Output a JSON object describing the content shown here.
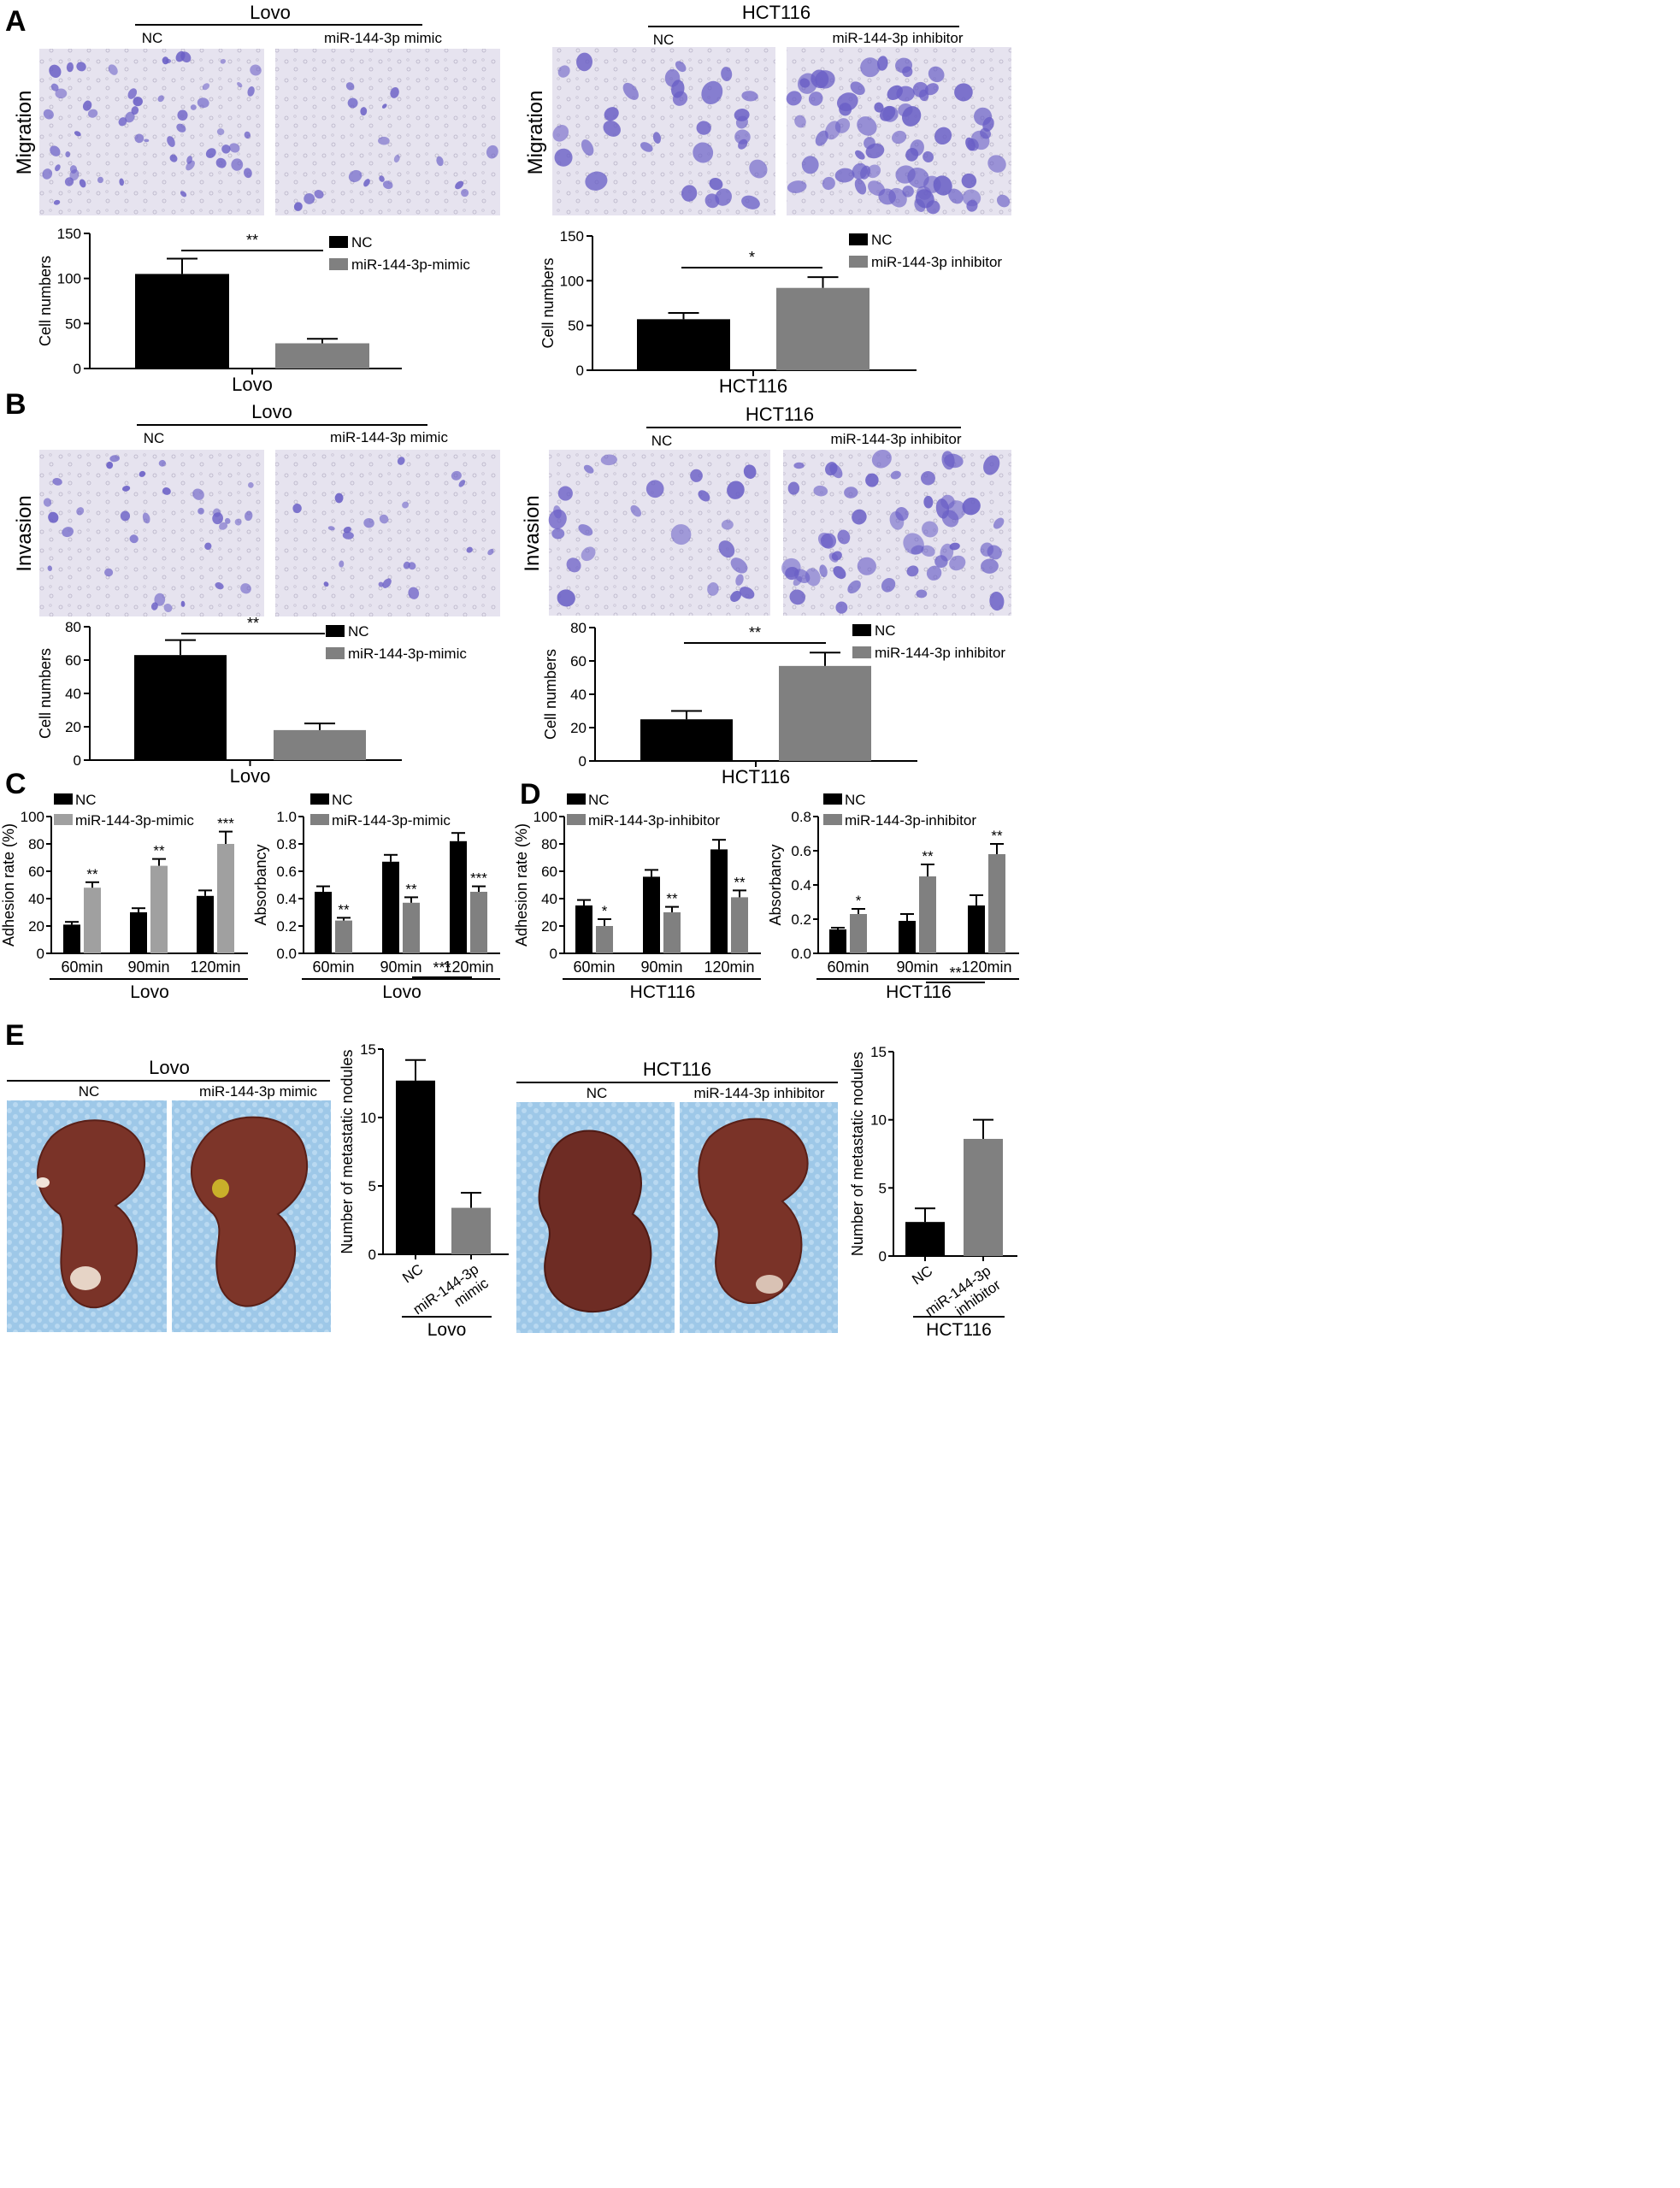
{
  "colors": {
    "nc": "#000000",
    "treat": "#808080",
    "treat_light": "#a0a0a0",
    "micrograph_bg": "#e4e1ee",
    "cell_stain": "#6a5fc6",
    "tray_blue": "#9ec8e8",
    "liver": "#7a3328"
  },
  "panel_letters": [
    "A",
    "B",
    "C",
    "D",
    "E"
  ],
  "panel_A": {
    "left": {
      "header": "Lovo",
      "col1": "NC",
      "col2": "miR-144-3p mimic",
      "row_label": "Migration",
      "chart_data": {
        "type": "bar",
        "categories": [
          "NC",
          "miR-144-3p-mimic"
        ],
        "values": [
          105,
          28
        ],
        "errors": [
          17,
          5
        ],
        "ylim": [
          0,
          150
        ],
        "yticks": [
          "0",
          "50",
          "100",
          "150"
        ],
        "ylabel": "Cell numbers",
        "xlabel": "Lovo",
        "sig": "**",
        "legend": [
          "NC",
          "miR-144-3p-mimic"
        ]
      }
    },
    "right": {
      "header": "HCT116",
      "col1": "NC",
      "col2": "miR-144-3p inhibitor",
      "row_label": "Migration",
      "chart_data": {
        "type": "bar",
        "categories": [
          "NC",
          "miR-144-3p inhibitor"
        ],
        "values": [
          57,
          92
        ],
        "errors": [
          7,
          12
        ],
        "ylim": [
          0,
          150
        ],
        "yticks": [
          "0",
          "50",
          "100",
          "150"
        ],
        "ylabel": "Cell numbers",
        "xlabel": "HCT116",
        "sig": "*",
        "legend": [
          "NC",
          "miR-144-3p inhibitor"
        ]
      }
    }
  },
  "panel_B": {
    "left": {
      "header": "Lovo",
      "col1": "NC",
      "col2": "miR-144-3p mimic",
      "row_label": "Invasion",
      "chart_data": {
        "type": "bar",
        "categories": [
          "NC",
          "miR-144-3p-mimic"
        ],
        "values": [
          63,
          18
        ],
        "errors": [
          9,
          4
        ],
        "ylim": [
          0,
          80
        ],
        "yticks": [
          "0",
          "20",
          "40",
          "60",
          "80"
        ],
        "ylabel": "Cell numbers",
        "xlabel": "Lovo",
        "sig": "**",
        "legend": [
          "NC",
          "miR-144-3p-mimic"
        ]
      }
    },
    "right": {
      "header": "HCT116",
      "col1": "NC",
      "col2": "miR-144-3p inhibitor",
      "row_label": "Invasion",
      "chart_data": {
        "type": "bar",
        "categories": [
          "NC",
          "miR-144-3p inhibitor"
        ],
        "values": [
          25,
          57
        ],
        "errors": [
          5,
          8
        ],
        "ylim": [
          0,
          80
        ],
        "yticks": [
          "0",
          "20",
          "40",
          "60",
          "80"
        ],
        "ylabel": "Cell numbers",
        "xlabel": "HCT116",
        "sig": "**",
        "legend": [
          "NC",
          "miR-144-3p inhibitor"
        ]
      }
    }
  },
  "panel_C": {
    "adhesion": {
      "chart_data": {
        "type": "bar",
        "categories": [
          "60min",
          "90min",
          "120min"
        ],
        "series": [
          {
            "name": "NC",
            "values": [
              21,
              30,
              42
            ],
            "errors": [
              2,
              3,
              4
            ]
          },
          {
            "name": "miR-144-3p-mimic",
            "values": [
              48,
              64,
              80
            ],
            "errors": [
              4,
              5,
              9
            ]
          }
        ],
        "ylim": [
          0,
          100
        ],
        "yticks": [
          "0",
          "20",
          "40",
          "60",
          "80",
          "100"
        ],
        "ylabel": "Adhesion rate (%)",
        "xlabel": "Lovo",
        "sig": [
          "**",
          "**",
          "***"
        ]
      }
    },
    "absorbancy": {
      "chart_data": {
        "type": "bar",
        "categories": [
          "60min",
          "90min",
          "120min"
        ],
        "series": [
          {
            "name": "NC",
            "values": [
              0.45,
              0.67,
              0.82
            ],
            "errors": [
              0.04,
              0.05,
              0.06
            ]
          },
          {
            "name": "miR-144-3p-mimic",
            "values": [
              0.24,
              0.37,
              0.45
            ],
            "errors": [
              0.02,
              0.04,
              0.04
            ]
          }
        ],
        "ylim": [
          0,
          1.0
        ],
        "yticks": [
          "0.0",
          "0.2",
          "0.4",
          "0.6",
          "0.8",
          "1.0"
        ],
        "ylabel": "Absorbancy",
        "xlabel": "Lovo",
        "sig": [
          "**",
          "**",
          "***"
        ]
      }
    }
  },
  "panel_D": {
    "adhesion": {
      "chart_data": {
        "type": "bar",
        "categories": [
          "60min",
          "90min",
          "120min"
        ],
        "series": [
          {
            "name": "NC",
            "values": [
              35,
              56,
              76
            ],
            "errors": [
              4,
              5,
              7
            ]
          },
          {
            "name": "miR-144-3p-inhibitor",
            "values": [
              20,
              30,
              41
            ],
            "errors": [
              5,
              4,
              5
            ]
          }
        ],
        "ylim": [
          0,
          100
        ],
        "yticks": [
          "0",
          "20",
          "40",
          "60",
          "80",
          "100"
        ],
        "ylabel": "Adhesion rate (%)",
        "xlabel": "HCT116",
        "sig": [
          "*",
          "**",
          "**"
        ]
      }
    },
    "absorbancy": {
      "chart_data": {
        "type": "bar",
        "categories": [
          "60min",
          "90min",
          "120min"
        ],
        "series": [
          {
            "name": "NC",
            "values": [
              0.14,
              0.19,
              0.28
            ],
            "errors": [
              0.01,
              0.04,
              0.06
            ]
          },
          {
            "name": "miR-144-3p-inhibitor",
            "values": [
              0.23,
              0.45,
              0.58
            ],
            "errors": [
              0.03,
              0.07,
              0.06
            ]
          }
        ],
        "ylim": [
          0,
          0.8
        ],
        "yticks": [
          "0.0",
          "0.2",
          "0.4",
          "0.6",
          "0.8"
        ],
        "ylabel": "Absorbancy",
        "xlabel": "HCT116",
        "sig": [
          "*",
          "**",
          "**"
        ]
      }
    }
  },
  "panel_E": {
    "left": {
      "header": "Lovo",
      "col1": "NC",
      "col2": "miR-144-3p mimic",
      "chart_data": {
        "type": "bar",
        "categories": [
          "NC",
          "miR-144-3p\nmimic"
        ],
        "values": [
          12.7,
          3.4
        ],
        "errors": [
          1.5,
          1.1
        ],
        "ylim": [
          0,
          15
        ],
        "yticks": [
          "0",
          "5",
          "10",
          "15"
        ],
        "ylabel": "Number of metastatic nodules",
        "xlabel": "Lovo",
        "sig": "***"
      }
    },
    "right": {
      "header": "HCT116",
      "col1": "NC",
      "col2": "miR-144-3p inhibitor",
      "chart_data": {
        "type": "bar",
        "categories": [
          "NC",
          "miR-144-3p\ninhibitor"
        ],
        "values": [
          2.5,
          8.6
        ],
        "errors": [
          1.0,
          1.4
        ],
        "ylim": [
          0,
          15
        ],
        "yticks": [
          "0",
          "5",
          "10",
          "15"
        ],
        "ylabel": "Number of metastatic nodules",
        "xlabel": "HCT116",
        "sig": "**"
      }
    }
  }
}
